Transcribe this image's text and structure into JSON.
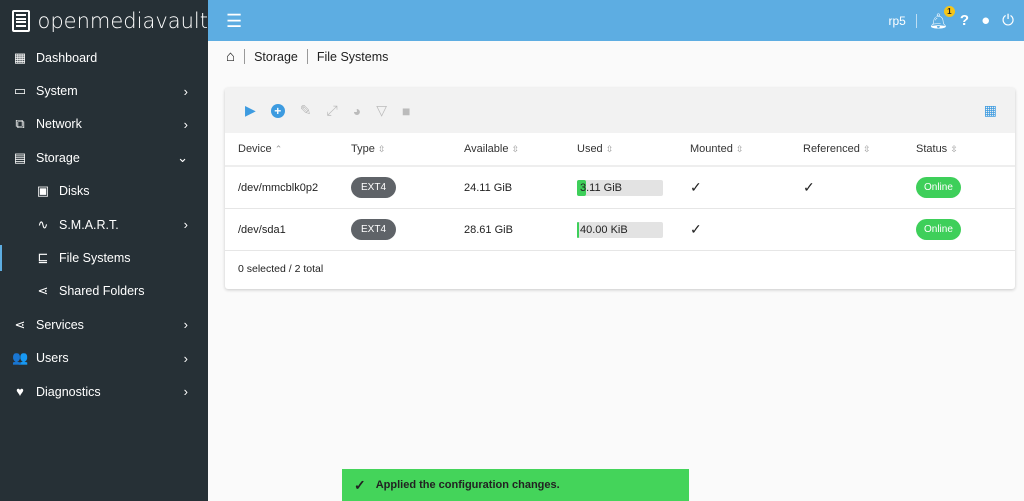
{
  "app": {
    "title": "openmediavault"
  },
  "sidebar": {
    "items": [
      {
        "label": "Dashboard",
        "icon": "grid-icon",
        "glyph": "▦",
        "chev": ""
      },
      {
        "label": "System",
        "icon": "laptop-icon",
        "glyph": "▭",
        "chev": "›"
      },
      {
        "label": "Network",
        "icon": "network-icon",
        "glyph": "⧉",
        "chev": "›"
      },
      {
        "label": "Storage",
        "icon": "storage-icon",
        "glyph": "▤",
        "chev": "⌄"
      },
      {
        "label": "Disks",
        "icon": "disk-icon",
        "glyph": "▣",
        "chev": "",
        "sub": true
      },
      {
        "label": "S.M.A.R.T.",
        "icon": "pulse-icon",
        "glyph": "∿",
        "chev": "›",
        "sub": true
      },
      {
        "label": "File Systems",
        "icon": "file-tree-icon",
        "glyph": "⊑",
        "chev": "",
        "sub": true,
        "active": true
      },
      {
        "label": "Shared Folders",
        "icon": "share-icon",
        "glyph": "⋖",
        "chev": "",
        "sub": true
      },
      {
        "label": "Services",
        "icon": "share-icon",
        "glyph": "⋖",
        "chev": "›"
      },
      {
        "label": "Users",
        "icon": "users-icon",
        "glyph": "👥",
        "chev": "›"
      },
      {
        "label": "Diagnostics",
        "icon": "heart-pulse-icon",
        "glyph": "♥",
        "chev": "›"
      }
    ]
  },
  "topbar": {
    "user": "rp5",
    "notifications": "1"
  },
  "breadcrumb": [
    "Storage",
    "File Systems"
  ],
  "table": {
    "columns": [
      "Device",
      "Type",
      "Available",
      "Used",
      "Mounted",
      "Referenced",
      "Status"
    ],
    "sort_asc": "⌃",
    "sort": "⇳",
    "rows": [
      {
        "device": "/dev/mmcblk0p2",
        "type": "EXT4",
        "available": "24.11 GiB",
        "used": "3.11 GiB",
        "used_pct": 11,
        "mounted": "✓",
        "referenced": "✓",
        "status": "Online"
      },
      {
        "device": "/dev/sda1",
        "type": "EXT4",
        "available": "28.61 GiB",
        "used": "40.00 KiB",
        "used_pct": 0.5,
        "mounted": "✓",
        "referenced": "",
        "status": "Online"
      }
    ],
    "footer": "0 selected / 2 total"
  },
  "toast": {
    "message": "Applied the configuration changes."
  },
  "colors": {
    "accent": "#5dade2",
    "sidebar": "#263036",
    "success": "#3ecf5a"
  }
}
